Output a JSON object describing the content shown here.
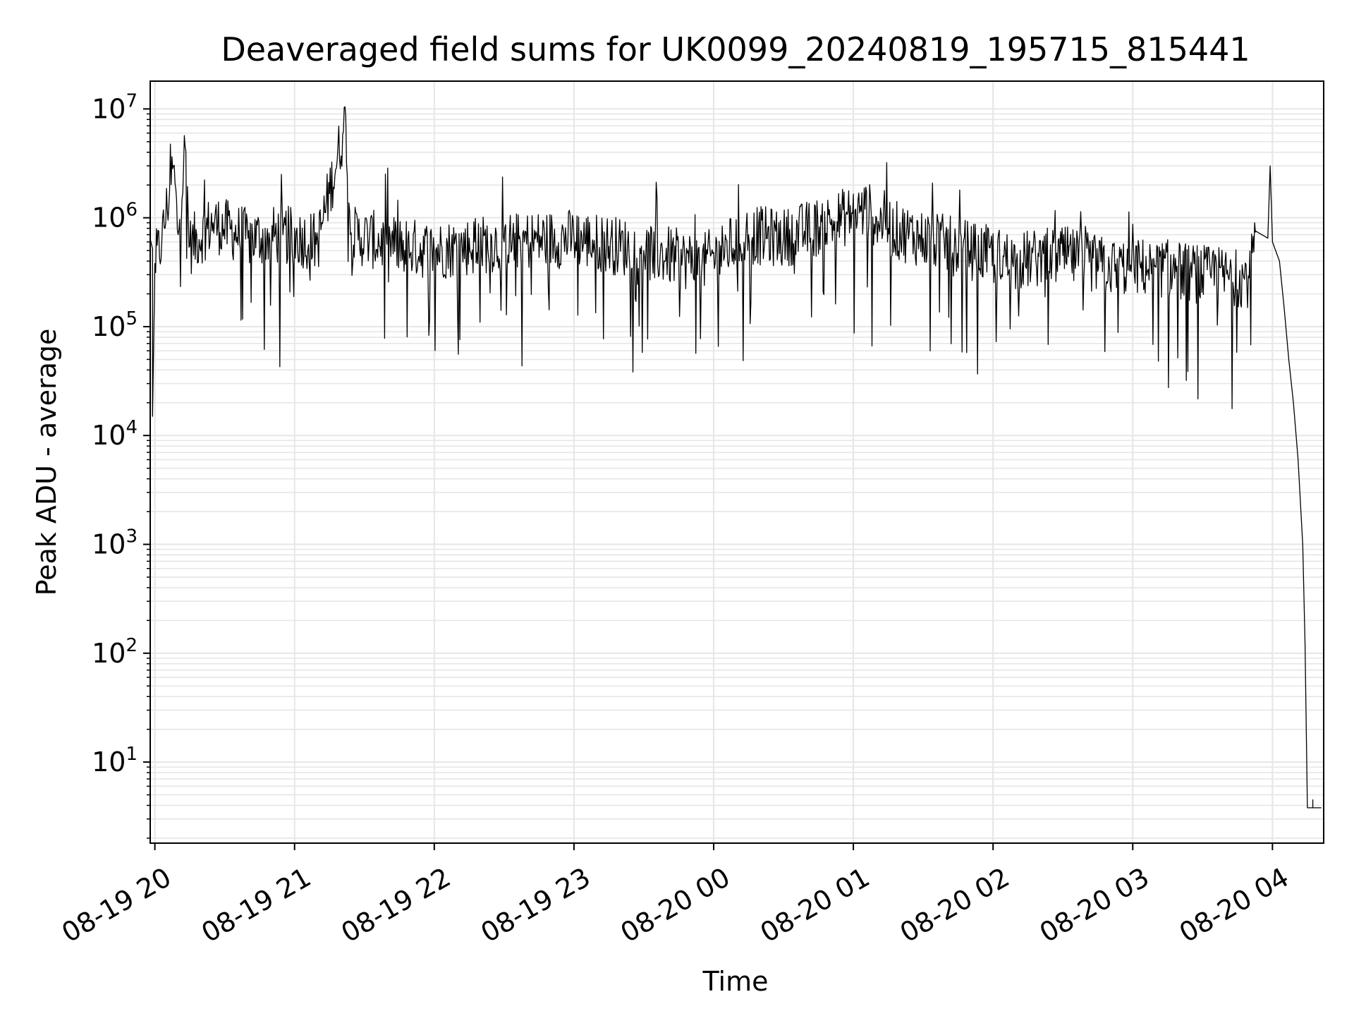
{
  "chart_data": {
    "type": "line",
    "title": "Deaveraged field sums for UK0099_20240819_195715_815441",
    "xlabel": "Time",
    "ylabel": "Peak ADU - average",
    "yscale": "log",
    "ylim": [
      1.8,
      18000000
    ],
    "xlim": [
      "2024-08-19 19:58",
      "2024-08-20 04:22"
    ],
    "grid": true,
    "x_tick_labels": [
      "08-19 20",
      "08-19 21",
      "08-19 22",
      "08-19 23",
      "08-20 00",
      "08-20 01",
      "08-20 02",
      "08-20 03",
      "08-20 04"
    ],
    "y_tick_labels": [
      {
        "base": "10",
        "exp": "1"
      },
      {
        "base": "10",
        "exp": "2"
      },
      {
        "base": "10",
        "exp": "3"
      },
      {
        "base": "10",
        "exp": "4"
      },
      {
        "base": "10",
        "exp": "5"
      },
      {
        "base": "10",
        "exp": "6"
      },
      {
        "base": "10",
        "exp": "7"
      }
    ],
    "colors": {
      "line": "#000000",
      "grid": "#e6e6e6",
      "axes": "#000000"
    },
    "series": [
      {
        "points": [
          [
            "2024-08-19 19:58",
            450000
          ],
          [
            "2024-08-19 19:58",
            640000
          ],
          [
            "2024-08-19 19:59",
            520000
          ],
          [
            "2024-08-19 19:59",
            15000
          ],
          [
            "2024-08-19 20:00",
            380000
          ],
          [
            "2024-08-19 20:03",
            620000
          ],
          [
            "2024-08-19 20:08",
            3000000
          ],
          [
            "2024-08-19 20:10",
            700000
          ],
          [
            "2024-08-19 20:13",
            4500000
          ],
          [
            "2024-08-19 20:15",
            550000
          ],
          [
            "2024-08-19 20:25",
            900000
          ],
          [
            "2024-08-19 20:40",
            650000
          ],
          [
            "2024-08-19 20:55",
            700000
          ],
          [
            "2024-08-19 21:10",
            600000
          ],
          [
            "2024-08-19 21:21",
            6200000
          ],
          [
            "2024-08-19 21:22",
            8600000
          ],
          [
            "2024-08-19 21:24",
            700000
          ],
          [
            "2024-08-19 21:45",
            550000
          ],
          [
            "2024-08-19 22:00",
            500000
          ],
          [
            "2024-08-19 22:30",
            600000
          ],
          [
            "2024-08-19 23:00",
            650000
          ],
          [
            "2024-08-19 23:30",
            500000
          ],
          [
            "2024-08-19 23:55",
            380000
          ],
          [
            "2024-08-20 00:15",
            700000
          ],
          [
            "2024-08-20 00:30",
            650000
          ],
          [
            "2024-08-20 00:50",
            900000
          ],
          [
            "2024-08-20 01:05",
            1200000
          ],
          [
            "2024-08-20 01:15",
            800000
          ],
          [
            "2024-08-20 01:30",
            650000
          ],
          [
            "2024-08-20 01:50",
            500000
          ],
          [
            "2024-08-20 02:10",
            400000
          ],
          [
            "2024-08-20 02:30",
            450000
          ],
          [
            "2024-08-20 02:50",
            350000
          ],
          [
            "2024-08-20 03:10",
            350000
          ],
          [
            "2024-08-20 03:30",
            300000
          ],
          [
            "2024-08-20 03:50",
            280000
          ],
          [
            "2024-08-20 03:53",
            750000
          ],
          [
            "2024-08-20 03:58",
            650000
          ],
          [
            "2024-08-20 03:59",
            3000000
          ],
          [
            "2024-08-20 04:00",
            600000
          ],
          [
            "2024-08-20 04:03",
            400000
          ],
          [
            "2024-08-20 04:05",
            150000
          ],
          [
            "2024-08-20 04:07",
            50000
          ],
          [
            "2024-08-20 04:09",
            20000
          ],
          [
            "2024-08-20 04:11",
            6000
          ],
          [
            "2024-08-20 04:13",
            1000
          ],
          [
            "2024-08-20 04:14",
            120
          ],
          [
            "2024-08-20 04:15",
            3.8
          ],
          [
            "2024-08-20 04:21",
            3.8
          ]
        ]
      }
    ]
  }
}
